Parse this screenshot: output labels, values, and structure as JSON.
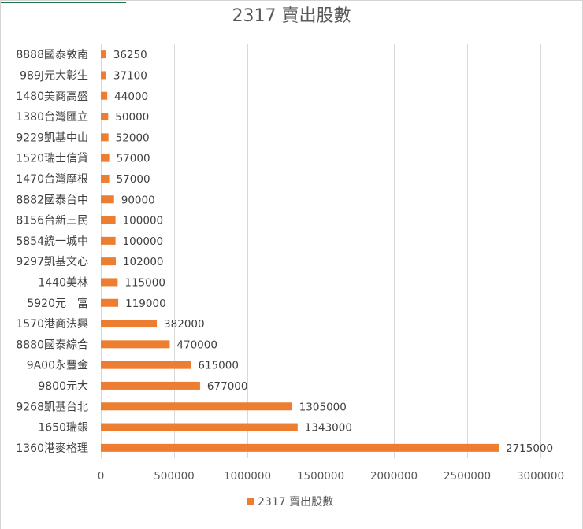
{
  "chart_data": {
    "type": "bar",
    "orientation": "horizontal",
    "title": "2317 賣出股數",
    "categories": [
      "8888國泰敦南",
      "989J元大彰生",
      "1480美商高盛",
      "1380台灣匯立",
      "9229凱基中山",
      "1520瑞士信貸",
      "1470台灣摩根",
      "8882國泰台中",
      "8156台新三民",
      "5854統一城中",
      "9297凱基文心",
      "1440美林",
      "5920元　富",
      "1570港商法興",
      "8880國泰綜合",
      "9A00永豐金",
      "9800元大",
      "9268凱基台北",
      "1650瑞銀",
      "1360港麥格理"
    ],
    "series": [
      {
        "name": "2317 賣出股數",
        "values": [
          36250,
          37100,
          44000,
          50000,
          52000,
          57000,
          57000,
          90000,
          100000,
          100000,
          102000,
          115000,
          119000,
          382000,
          470000,
          615000,
          677000,
          1305000,
          1343000,
          2715000
        ],
        "labels": [
          "36250",
          "37100",
          "44000",
          "50000",
          "52000",
          "57000",
          "57000",
          "90000",
          "100000",
          "100000",
          "102000",
          "115000",
          "119000",
          "382000",
          "470000",
          "615000",
          "677000",
          "1305000",
          "1343000",
          "2715000"
        ]
      }
    ],
    "xlim": [
      0,
      3000000
    ],
    "x_ticks": [
      "0",
      "500000",
      "1000000",
      "1500000",
      "2000000",
      "2500000",
      "3000000"
    ],
    "x_tick_values": [
      0,
      500000,
      1000000,
      1500000,
      2000000,
      2500000,
      3000000
    ],
    "grid": true,
    "legend_position": "bottom",
    "colors": {
      "bar": "#ED7D31",
      "grid": "#D9D9D9",
      "text": "#595959"
    }
  }
}
